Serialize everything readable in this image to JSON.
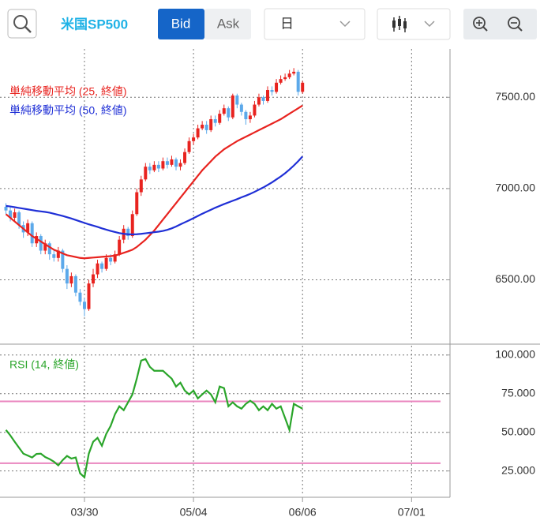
{
  "toolbar": {
    "symbol": "米国SP500",
    "bid": "Bid",
    "ask": "Ask",
    "period": "日"
  },
  "chart_data": [
    {
      "type": "candlestick",
      "open": [
        6900,
        6880,
        6840,
        6870,
        6800,
        6760,
        6810,
        6700,
        6740,
        6660,
        6700,
        6640,
        6620,
        6660,
        6560,
        6480,
        6520,
        6430,
        6380,
        6340,
        6480,
        6530,
        6590,
        6560,
        6620,
        6600,
        6640,
        6720,
        6780,
        6740,
        6860,
        6980,
        7050,
        7120,
        7100,
        7130,
        7110,
        7150,
        7130,
        7160,
        7120,
        7140,
        7200,
        7260,
        7280,
        7330,
        7350,
        7320,
        7380,
        7360,
        7410,
        7440,
        7390,
        7510,
        7460,
        7420,
        7380,
        7400,
        7460,
        7500,
        7480,
        7540,
        7530,
        7580,
        7600,
        7610,
        7630,
        7640,
        7530
      ],
      "high": [
        6920,
        6900,
        6890,
        6880,
        6820,
        6830,
        6820,
        6760,
        6750,
        6720,
        6710,
        6660,
        6680,
        6670,
        6580,
        6540,
        6530,
        6450,
        6400,
        6500,
        6560,
        6610,
        6600,
        6640,
        6640,
        6660,
        6740,
        6800,
        6790,
        6880,
        7000,
        7070,
        7140,
        7140,
        7150,
        7150,
        7170,
        7170,
        7180,
        7170,
        7160,
        7220,
        7280,
        7300,
        7350,
        7370,
        7370,
        7400,
        7400,
        7430,
        7460,
        7450,
        7520,
        7520,
        7470,
        7430,
        7420,
        7480,
        7520,
        7510,
        7560,
        7560,
        7600,
        7620,
        7630,
        7650,
        7660,
        7650,
        7590
      ],
      "low": [
        6860,
        6820,
        6820,
        6780,
        6730,
        6740,
        6680,
        6680,
        6640,
        6640,
        6610,
        6600,
        6600,
        6540,
        6450,
        6460,
        6410,
        6360,
        6300,
        6330,
        6460,
        6510,
        6540,
        6550,
        6580,
        6590,
        6630,
        6700,
        6720,
        6730,
        6850,
        6960,
        7040,
        7080,
        7090,
        7090,
        7100,
        7110,
        7120,
        7100,
        7100,
        7130,
        7190,
        7240,
        7270,
        7320,
        7300,
        7310,
        7340,
        7350,
        7400,
        7370,
        7380,
        7440,
        7400,
        7350,
        7360,
        7390,
        7450,
        7460,
        7470,
        7510,
        7520,
        7570,
        7590,
        7600,
        7620,
        7510,
        7520
      ],
      "close": [
        6880,
        6840,
        6870,
        6800,
        6760,
        6810,
        6700,
        6740,
        6660,
        6700,
        6640,
        6620,
        6660,
        6560,
        6480,
        6520,
        6430,
        6380,
        6340,
        6480,
        6530,
        6590,
        6560,
        6620,
        6600,
        6640,
        6720,
        6780,
        6740,
        6860,
        6980,
        7050,
        7120,
        7100,
        7130,
        7110,
        7150,
        7130,
        7160,
        7120,
        7140,
        7200,
        7260,
        7280,
        7330,
        7350,
        7320,
        7380,
        7360,
        7410,
        7440,
        7390,
        7510,
        7460,
        7420,
        7380,
        7400,
        7460,
        7500,
        7480,
        7540,
        7530,
        7580,
        7600,
        7610,
        7630,
        7640,
        7530,
        7580
      ],
      "up_color": "#e8231f",
      "down_color": "#5ca9ea",
      "series": [
        {
          "name": "単純移動平均 (25, 終値)",
          "color": "#e8231f",
          "values": [
            6860,
            6840,
            6820,
            6800,
            6780,
            6760,
            6740,
            6725,
            6710,
            6695,
            6680,
            6665,
            6655,
            6645,
            6635,
            6630,
            6625,
            6620,
            6618,
            6620,
            6622,
            6624,
            6626,
            6628,
            6630,
            6633,
            6640,
            6648,
            6656,
            6665,
            6680,
            6700,
            6720,
            6745,
            6770,
            6800,
            6830,
            6860,
            6890,
            6920,
            6950,
            6980,
            7010,
            7040,
            7070,
            7100,
            7125,
            7150,
            7175,
            7195,
            7215,
            7230,
            7245,
            7260,
            7272,
            7284,
            7296,
            7308,
            7320,
            7332,
            7344,
            7356,
            7368,
            7380,
            7395,
            7410,
            7425,
            7440,
            7455
          ]
        },
        {
          "name": "単純移動平均 (50, 終値)",
          "color": "#1f2fd6",
          "values": [
            6905,
            6902,
            6898,
            6894,
            6890,
            6886,
            6882,
            6878,
            6875,
            6872,
            6868,
            6862,
            6856,
            6850,
            6843,
            6836,
            6828,
            6820,
            6812,
            6804,
            6797,
            6790,
            6782,
            6775,
            6768,
            6762,
            6756,
            6752,
            6750,
            6749,
            6750,
            6752,
            6755,
            6758,
            6761,
            6764,
            6768,
            6774,
            6782,
            6792,
            6804,
            6815,
            6826,
            6838,
            6850,
            6862,
            6873,
            6884,
            6895,
            6905,
            6915,
            6924,
            6933,
            6942,
            6952,
            6961,
            6971,
            6982,
            6994,
            7006,
            7020,
            7034,
            7050,
            7066,
            7084,
            7104,
            7126,
            7150,
            7176
          ]
        }
      ],
      "xlim": [
        -1,
        100
      ],
      "ylim": [
        6165,
        7765
      ],
      "yticks": [
        {
          "value": 6500,
          "label": "6500.00"
        },
        {
          "value": 7000,
          "label": "7000.00"
        },
        {
          "value": 7500,
          "label": "7500.00"
        }
      ],
      "grid": true
    },
    {
      "type": "line",
      "series": [
        {
          "name": "RSI (14, 終値)",
          "color": "#2aa52a",
          "values": [
            51.5,
            48,
            43.9,
            40,
            36.2,
            35,
            33.7,
            36,
            36.2,
            34,
            32.7,
            31,
            28.6,
            32,
            34.7,
            33,
            33.7,
            23.5,
            20.9,
            36.2,
            43.9,
            46.4,
            41.3,
            49,
            54.1,
            61.7,
            66.8,
            64.3,
            69.4,
            74.5,
            84.7,
            96.4,
            97.4,
            92.3,
            89.8,
            89.8,
            89.8,
            87.2,
            84.7,
            79.6,
            82.1,
            77,
            74.5,
            77,
            71.9,
            74.5,
            77,
            74.5,
            69.4,
            79.6,
            78.6,
            66.8,
            69.4,
            66.8,
            65.3,
            68.4,
            70.4,
            68.4,
            64.3,
            66.8,
            64.3,
            68.4,
            65.3,
            66.8,
            59.2,
            51.5,
            68.4,
            66.8,
            65.3
          ]
        }
      ],
      "xlim": [
        -1,
        100
      ],
      "ylim": [
        9,
        106
      ],
      "yticks": [
        {
          "value": 25,
          "label": "25.000"
        },
        {
          "value": 50,
          "label": "50.000"
        },
        {
          "value": 75,
          "label": "75.000"
        },
        {
          "value": 100,
          "label": "100.000"
        }
      ],
      "xticks": [
        {
          "value": 18,
          "label": "03/30"
        },
        {
          "value": 43,
          "label": "05/04"
        },
        {
          "value": 68,
          "label": "06/06"
        },
        {
          "value": 93,
          "label": "07/01"
        }
      ],
      "levels": [
        70,
        30
      ],
      "level_color": "#ea86bf",
      "grid": true
    }
  ]
}
